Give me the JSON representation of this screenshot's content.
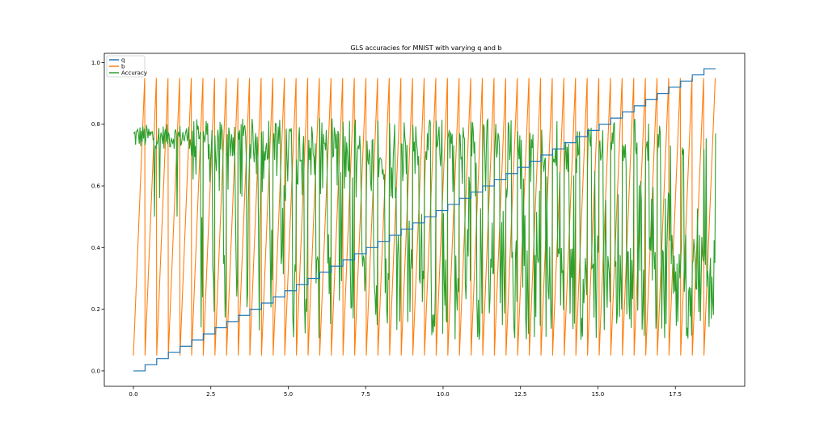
{
  "chart_data": {
    "type": "line",
    "title": "GLS accuracies for MNIST with varying q and b",
    "xlabel": "",
    "ylabel": "",
    "xlim": [
      -0.94,
      19.74
    ],
    "ylim": [
      -0.05,
      1.03
    ],
    "xticks": [
      0.0,
      2.5,
      5.0,
      7.5,
      10.0,
      12.5,
      15.0,
      17.5
    ],
    "xtick_labels": [
      "0.0",
      "2.5",
      "5.0",
      "7.5",
      "10.0",
      "12.5",
      "15.0",
      "17.5"
    ],
    "yticks": [
      0.0,
      0.2,
      0.4,
      0.6,
      0.8,
      1.0
    ],
    "ytick_labels": [
      "0.0",
      "0.2",
      "0.4",
      "0.6",
      "0.8",
      "1.0"
    ],
    "grid": false,
    "legend": {
      "position": "top-left"
    },
    "series": [
      {
        "name": "q",
        "color": "#1f77b4",
        "description": "staircase rising from 0.0 to 0.98 in steps of 0.02, one step per b-cycle",
        "step_start": 0.0,
        "step_end": 0.98,
        "step_size": 0.02,
        "x_start": 0.0,
        "x_end": 18.8
      },
      {
        "name": "b",
        "color": "#ff7f0e",
        "description": "sawtooth repeatedly sweeping from 0.05 up to 0.95 then dropping back",
        "min": 0.05,
        "max": 0.95,
        "cycles": 50,
        "x_start": 0.0,
        "x_end": 18.8
      },
      {
        "name": "Accuracy",
        "color": "#2ca02c",
        "description": "noisy accuracy oscillating mostly between ~0.1 and ~0.82; stable near 0.75 at low q, dropping when b is large",
        "max": 0.83,
        "min": 0.06,
        "x_start": 0.0,
        "x_end": 18.8
      }
    ]
  }
}
